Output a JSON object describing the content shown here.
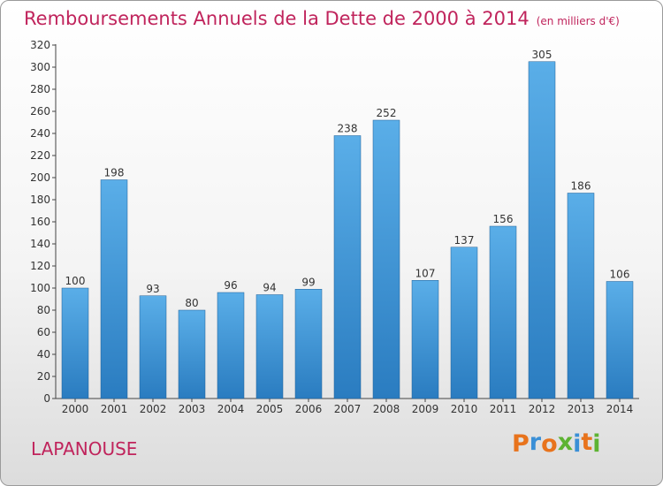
{
  "chart_data": {
    "type": "bar",
    "title": "Remboursements Annuels de la Dette de 2000 à 2014",
    "unit_label": "(en milliers d'€)",
    "categories": [
      "2000",
      "2001",
      "2002",
      "2003",
      "2004",
      "2005",
      "2006",
      "2007",
      "2008",
      "2009",
      "2010",
      "2011",
      "2012",
      "2013",
      "2014"
    ],
    "values": [
      100,
      198,
      93,
      80,
      96,
      94,
      99,
      238,
      252,
      107,
      137,
      156,
      305,
      186,
      106
    ],
    "yticks": [
      0,
      20,
      40,
      60,
      80,
      100,
      120,
      140,
      160,
      180,
      200,
      220,
      240,
      260,
      280,
      300,
      320
    ],
    "ylim": [
      0,
      320
    ],
    "xlabel": "",
    "ylabel": "",
    "grid": false,
    "bar_color_top": "#5aaee8",
    "bar_color_bottom": "#2a7cc0",
    "title_color": "#c0245c"
  },
  "footer": {
    "town": "LAPANOUSE",
    "logo_letters": [
      {
        "ch": "P",
        "color": "#e8731c"
      },
      {
        "ch": "r",
        "color": "#3a8fd6"
      },
      {
        "ch": "o",
        "color": "#e8731c"
      },
      {
        "ch": "x",
        "color": "#5db332"
      },
      {
        "ch": "i",
        "color": "#3a8fd6"
      },
      {
        "ch": "t",
        "color": "#e8731c"
      },
      {
        "ch": "i",
        "color": "#5db332"
      }
    ]
  }
}
